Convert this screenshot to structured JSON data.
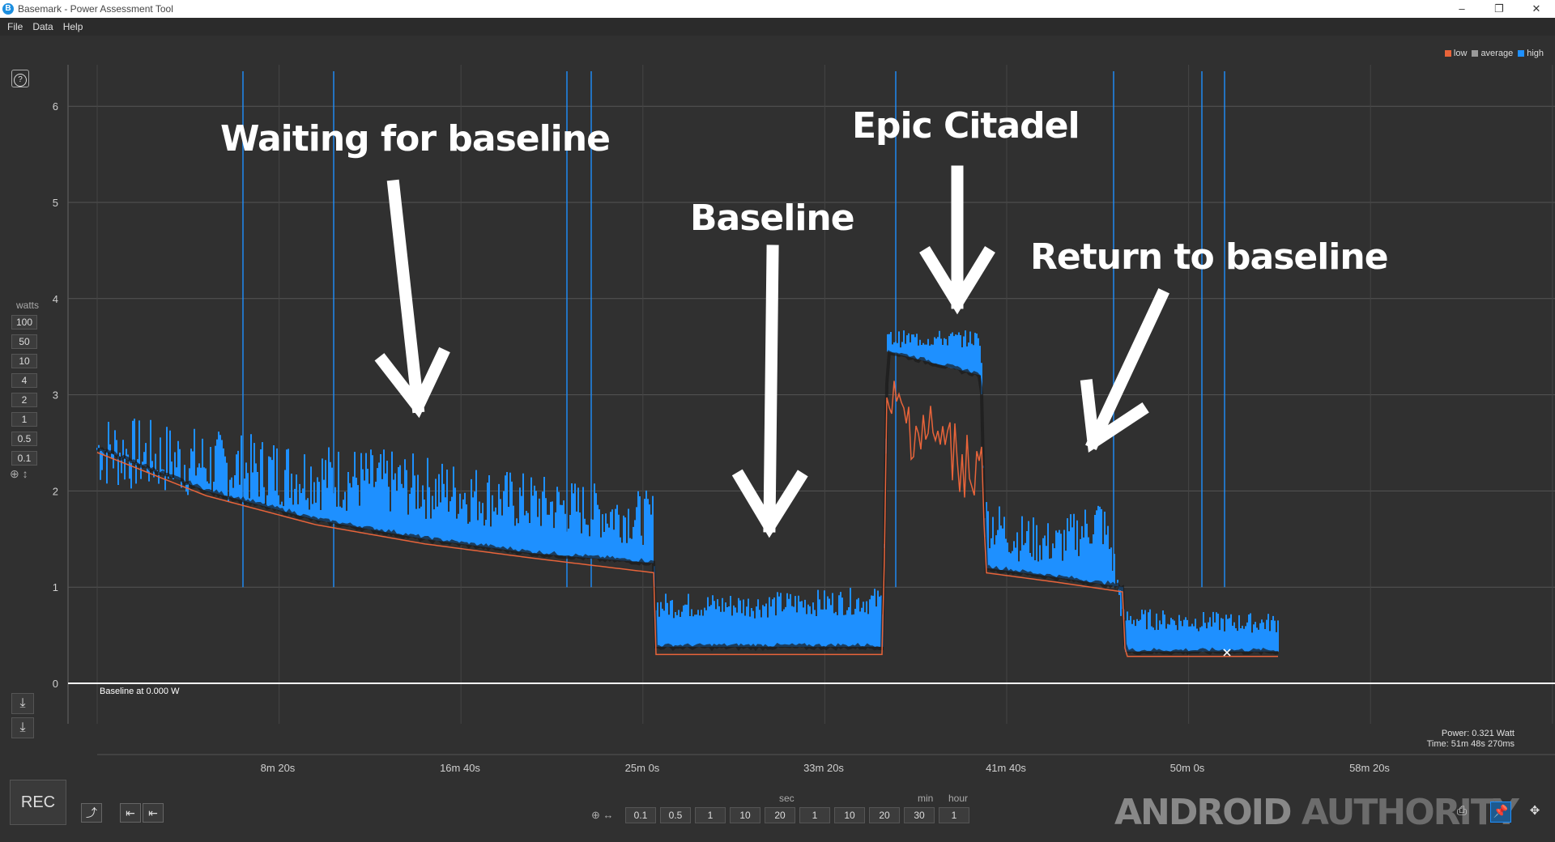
{
  "window": {
    "title": "Basemark - Power Assessment Tool",
    "icon": "basemark-logo-icon",
    "controls": {
      "minimize": "–",
      "restore": "❐",
      "close": "✕"
    }
  },
  "menu": [
    "File",
    "Data",
    "Help"
  ],
  "sidebar": {
    "help_icon": "?",
    "unit_label": "watts",
    "scale_buttons": [
      "100",
      "50",
      "10",
      "4",
      "2",
      "1",
      "0.5",
      "0.1"
    ],
    "zoom_icon": "⊕",
    "vertical_arrow_icon": "↕",
    "download_icons": [
      "⤓",
      "⤓"
    ]
  },
  "legend": [
    {
      "label": "low",
      "color": "#e8643a"
    },
    {
      "label": "average",
      "color": "#9a9a9a"
    },
    {
      "label": "high",
      "color": "#1e90ff"
    }
  ],
  "annotations": {
    "waiting": "Waiting for baseline",
    "baseline": "Baseline",
    "epic": "Epic Citadel",
    "return": "Return to baseline"
  },
  "baseline_label": "Baseline at 0.000 W",
  "readout": {
    "power": "Power: 0.321 Watt",
    "time": "Time: 51m 48s 270ms"
  },
  "chart_data": {
    "type": "area",
    "ylabel": "watts",
    "ylim": [
      0,
      6.5
    ],
    "yticks": [
      0,
      1,
      2,
      3,
      4,
      5,
      6
    ],
    "xlim_min": [
      0,
      62
    ],
    "xticks": [
      "8m 20s",
      "16m 40s",
      "25m 0s",
      "33m 20s",
      "41m 40s",
      "50m 0s",
      "58m 20s"
    ],
    "grid": true,
    "legend_position": "top-right",
    "series": [
      {
        "name": "high",
        "points_min_watts": [
          [
            0,
            2.7
          ],
          [
            3,
            2.6
          ],
          [
            6,
            2.5
          ],
          [
            10,
            2.4
          ],
          [
            14,
            2.3
          ],
          [
            18,
            2.15
          ],
          [
            21,
            2.05
          ],
          [
            24,
            1.95
          ],
          [
            25.5,
            1.9
          ],
          [
            25.6,
            0.9
          ],
          [
            30,
            0.9
          ],
          [
            35,
            0.95
          ],
          [
            36,
            0.95
          ],
          [
            36.2,
            3.6
          ],
          [
            40,
            3.6
          ],
          [
            40.5,
            3.6
          ],
          [
            40.7,
            1.9
          ],
          [
            42,
            1.7
          ],
          [
            44,
            1.6
          ],
          [
            46,
            1.9
          ],
          [
            46.5,
            1.5
          ],
          [
            47,
            0.75
          ],
          [
            52,
            0.7
          ],
          [
            55,
            0.7
          ]
        ]
      },
      {
        "name": "average",
        "points_min_watts": [
          [
            0,
            2.45
          ],
          [
            5,
            2.0
          ],
          [
            10,
            1.7
          ],
          [
            15,
            1.5
          ],
          [
            20,
            1.35
          ],
          [
            25.5,
            1.25
          ],
          [
            25.6,
            0.38
          ],
          [
            36,
            0.38
          ],
          [
            36.2,
            3.45
          ],
          [
            40.5,
            3.2
          ],
          [
            40.7,
            1.2
          ],
          [
            44,
            1.1
          ],
          [
            47,
            1.0
          ],
          [
            47.1,
            0.33
          ],
          [
            55,
            0.33
          ]
        ]
      },
      {
        "name": "low",
        "points_min_watts": [
          [
            0,
            2.4
          ],
          [
            5,
            1.95
          ],
          [
            10,
            1.65
          ],
          [
            15,
            1.45
          ],
          [
            20,
            1.3
          ],
          [
            25.5,
            1.15
          ],
          [
            25.6,
            0.3
          ],
          [
            36,
            0.3
          ],
          [
            36.2,
            3.3
          ],
          [
            40.5,
            2.6
          ],
          [
            40.7,
            1.15
          ],
          [
            44,
            1.05
          ],
          [
            47,
            0.95
          ],
          [
            47.1,
            0.28
          ],
          [
            55,
            0.28
          ]
        ]
      }
    ]
  },
  "toolbar": {
    "rec_label": "REC",
    "export_icon": "⤴",
    "jump_start_icon": "⇤",
    "jump_mark_icon": "⇤",
    "sec_label": "sec",
    "min_label": "min",
    "hour_label": "hour",
    "zoom_icon": "⊕ ↔",
    "time_buttons": [
      "0.1",
      "0.5",
      "1",
      "10",
      "20",
      "1",
      "10",
      "20",
      "30",
      "1"
    ],
    "right_icons": [
      "⎙",
      "📌",
      "✥"
    ]
  },
  "watermark": {
    "first": "ANDROID",
    "second": "AUTHORITY"
  }
}
